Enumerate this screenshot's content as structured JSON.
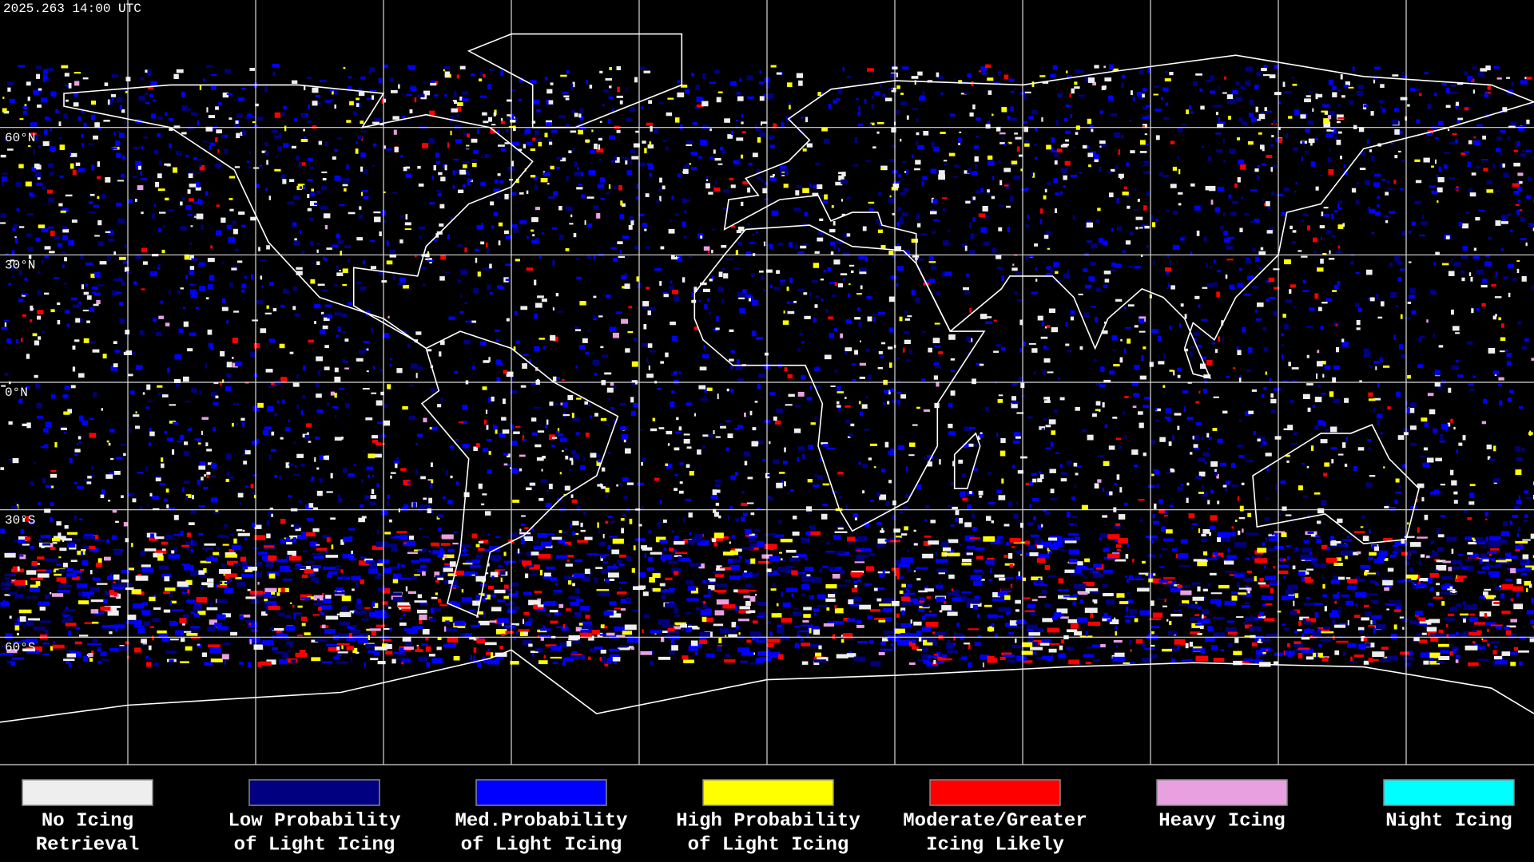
{
  "header": {
    "timestamp": "2025.263 14:00 UTC"
  },
  "map": {
    "lat_labels": [
      "60°N",
      "30°N",
      "0°N",
      "30°S",
      "60°S"
    ]
  },
  "legend": {
    "items": [
      {
        "label": [
          "No Icing",
          "Retrieval"
        ],
        "color": "#eeeeee"
      },
      {
        "label": [
          "Low Probability",
          "of Light Icing"
        ],
        "color": "#000080"
      },
      {
        "label": [
          "Med.Probability",
          "of Light Icing"
        ],
        "color": "#0000ff"
      },
      {
        "label": [
          "High Probability",
          "of Light Icing"
        ],
        "color": "#ffff00"
      },
      {
        "label": [
          "Moderate/Greater",
          "Icing Likely"
        ],
        "color": "#ff0000"
      },
      {
        "label": [
          "Heavy Icing"
        ],
        "color": "#e8a0e0"
      },
      {
        "label": [
          "Night Icing"
        ],
        "color": "#00ffff"
      }
    ]
  }
}
